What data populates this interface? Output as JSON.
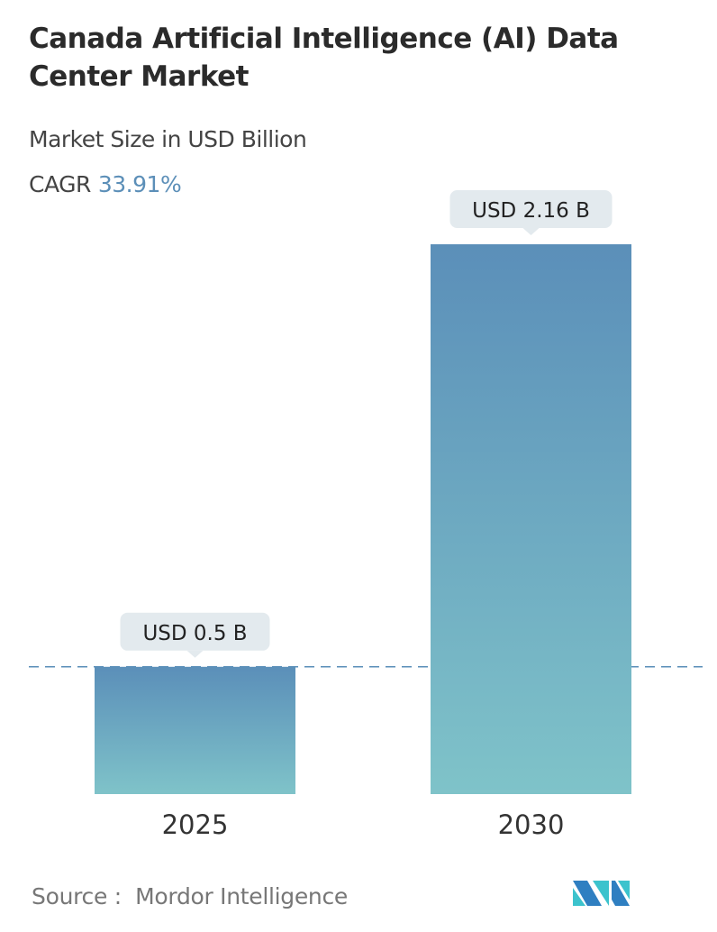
{
  "chart_data": {
    "type": "bar",
    "title": "Canada Artificial Intelligence (AI) Data Center Market",
    "subtitle": "Market Size in USD Billion",
    "cagr_label": "CAGR",
    "cagr_value": "33.91%",
    "categories": [
      "2025",
      "2030"
    ],
    "values": [
      0.5,
      2.16
    ],
    "data_labels": [
      "USD 0.5 B",
      "USD 2.16 B"
    ],
    "xlabel": "",
    "ylabel": "",
    "grid": false,
    "colors": {
      "bar_top": "#5b8fb9",
      "bar_bottom": "#7fc3c9",
      "label_bg": "#e3eaee",
      "dashed_line": "#5b8fb9"
    }
  },
  "source": {
    "label": "Source :",
    "value": "Mordor Intelligence"
  },
  "logo": {
    "text": "Mordor Intelligence",
    "colors": [
      "#2f7fc1",
      "#3cc3cd"
    ]
  }
}
